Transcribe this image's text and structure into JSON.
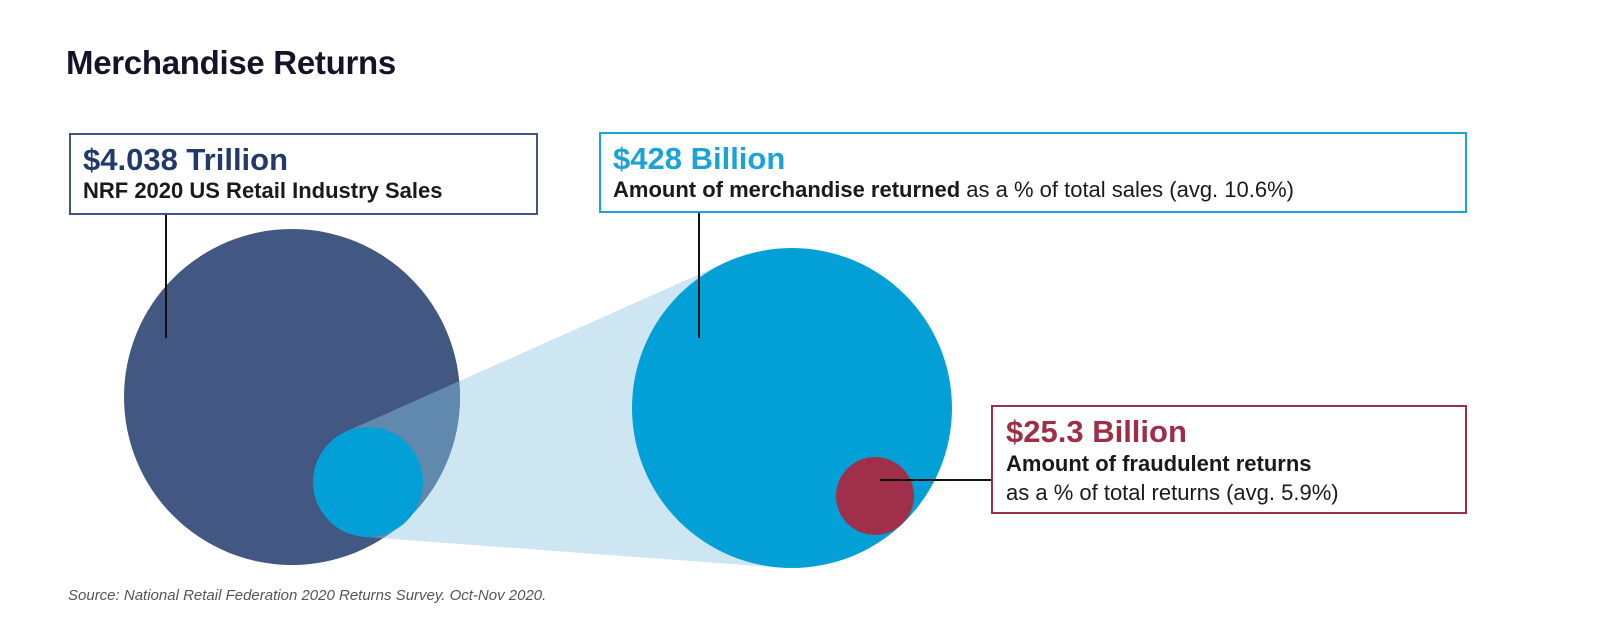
{
  "chart_data": {
    "type": "bubble",
    "title": "Merchandise Returns",
    "unit": "USD",
    "items": [
      {
        "key": "total",
        "amount_label": "$4.038 Trillion",
        "value_billion": 4038,
        "description": "NRF 2020 US Retail Industry Sales",
        "color": "#425882"
      },
      {
        "key": "returned",
        "amount_label": "$428 Billion",
        "value_billion": 428,
        "description_bold": "Amount of merchandise returned",
        "description_rest": " as a % of total sales (avg. 10.6%)",
        "percent_of_parent": 10.6,
        "color": "#02a0d6"
      },
      {
        "key": "fraud",
        "amount_label": "$25.3 Billion",
        "value_billion": 25.3,
        "description_bold": "Amount of fraudulent returns",
        "description_rest": "as a % of total returns (avg. 5.9%)",
        "percent_of_parent": 5.9,
        "color": "#a0304a"
      }
    ],
    "source": "Source: National Retail Federation 2020 Returns Survey. Oct-Nov 2020."
  }
}
